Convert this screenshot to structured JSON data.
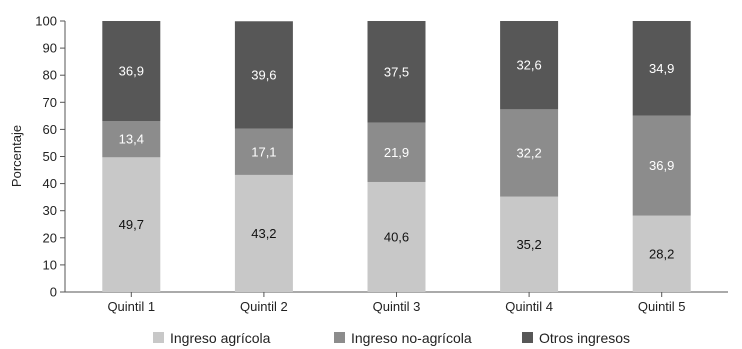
{
  "chart_data": {
    "type": "bar",
    "stacked": true,
    "categories": [
      "Quintil 1",
      "Quintil 2",
      "Quintil 3",
      "Quintil 4",
      "Quintil 5"
    ],
    "series": [
      {
        "name": "Ingreso agrícola",
        "values": [
          49.7,
          43.2,
          40.6,
          35.2,
          28.2
        ],
        "labels": [
          "49,7",
          "43,2",
          "40,6",
          "35,2",
          "28,2"
        ],
        "color": "#c8c8c8",
        "label_color": "#111111"
      },
      {
        "name": "Ingreso no-agrícola",
        "values": [
          13.4,
          17.1,
          21.9,
          32.2,
          36.9
        ],
        "labels": [
          "13,4",
          "17,1",
          "21,9",
          "32,2",
          "36,9"
        ],
        "color": "#8c8c8c",
        "label_color": "#ffffff"
      },
      {
        "name": "Otros ingresos",
        "values": [
          36.9,
          39.6,
          37.5,
          32.6,
          34.9
        ],
        "labels": [
          "36,9",
          "39,6",
          "37,5",
          "32,6",
          "34,9"
        ],
        "color": "#575757",
        "label_color": "#ffffff"
      }
    ],
    "title": "",
    "xlabel": "",
    "ylabel": "Porcentaje",
    "ylim": [
      0,
      100
    ],
    "yticks": [
      0,
      10,
      20,
      30,
      40,
      50,
      60,
      70,
      80,
      90,
      100
    ],
    "grid": false,
    "legend_position": "bottom"
  }
}
